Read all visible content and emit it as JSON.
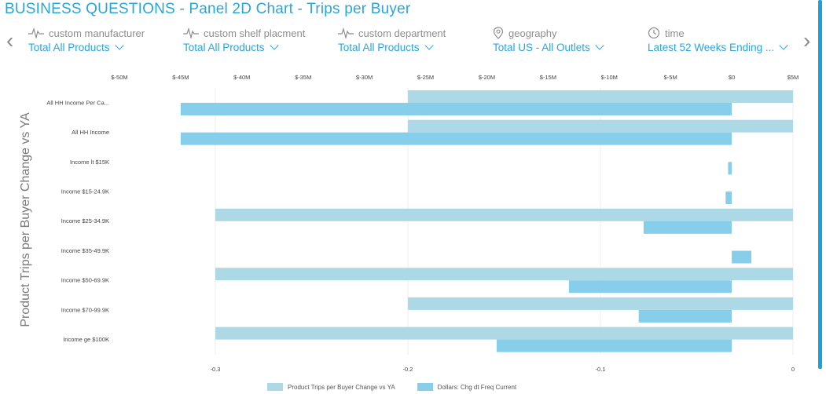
{
  "header": {
    "title": "BUSINESS QUESTIONS - Panel 2D Chart - Trips per Buyer"
  },
  "nav": {
    "prev_icon": "chevron-left-icon",
    "next_icon": "chevron-right-icon",
    "prev_glyph": "‹",
    "next_glyph": "›"
  },
  "filters": [
    {
      "label": "custom manufacturer",
      "value": "Total All Products",
      "icon": "pulse-icon"
    },
    {
      "label": "custom shelf placment",
      "value": "Total All Products",
      "icon": "pulse-icon"
    },
    {
      "label": "custom department",
      "value": "Total All Products",
      "icon": "pulse-icon"
    },
    {
      "label": "geography",
      "value": "Total US - All Outlets",
      "icon": "location-pin-icon"
    },
    {
      "label": "time",
      "value": "Latest 52 Weeks Ending ...",
      "icon": "clock-icon"
    }
  ],
  "colors": {
    "accent": "#29a5dc",
    "series1": "#add8e6",
    "series2": "#87ceeb",
    "grid": "#eeeeee"
  },
  "chart_data": {
    "type": "bar",
    "orientation": "horizontal",
    "ylabel": "Product Trips per Buyer Change vs YA",
    "categories": [
      "All HH Income Per Ca...",
      "All HH Income",
      "Income lt $15K",
      "Income $15-24.9K",
      "Income $25-34.9K",
      "Income $35-49.9K",
      "Income $50-69.9K",
      "Income $70-99.9K",
      "Income ge $100K"
    ],
    "bottom_axis": {
      "range": [
        -0.3,
        0
      ],
      "ticks": [
        -0.3,
        -0.2,
        -0.1,
        0
      ],
      "tick_labels": [
        "-0.3",
        "-0.2",
        "-0.1",
        "0"
      ]
    },
    "top_axis": {
      "range": [
        -50,
        5
      ],
      "ticks": [
        -50,
        -45,
        -40,
        -35,
        -30,
        -25,
        -20,
        -15,
        -10,
        -5,
        0,
        5
      ],
      "tick_labels": [
        "$-50M",
        "$-45M",
        "$-40M",
        "$-35M",
        "$-30M",
        "$-25M",
        "$-20M",
        "$-15M",
        "$-10M",
        "$-5M",
        "$0",
        "$5M"
      ]
    },
    "series": [
      {
        "name": "Product Trips per Buyer Change vs YA",
        "axis": "bottom",
        "values": [
          -0.2,
          -0.2,
          0,
          0,
          -0.3,
          0,
          -0.3,
          -0.2,
          -0.3
        ]
      },
      {
        "name": "Dollars: Chg dt Freq Current",
        "axis": "top",
        "unit": "$M",
        "values": [
          -45,
          -45,
          -0.3,
          -0.5,
          -7.2,
          1.6,
          -13.3,
          -7.6,
          -19.2
        ]
      }
    ],
    "grid": true,
    "legend": "bottom"
  }
}
